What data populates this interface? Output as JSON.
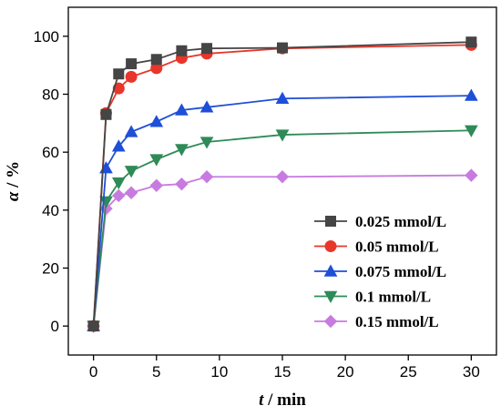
{
  "chart_data": {
    "type": "line",
    "title": "",
    "xlabel_var": "t",
    "xlabel_unit": " / min",
    "ylabel_var": "α",
    "ylabel_unit": " / %",
    "xlim": [
      -2,
      32
    ],
    "ylim": [
      -10,
      110
    ],
    "xticks": [
      0,
      5,
      10,
      15,
      20,
      25,
      30
    ],
    "yticks": [
      0,
      20,
      40,
      60,
      80,
      100
    ],
    "grid": false,
    "legend_position": "bottom-right",
    "x": [
      0,
      1,
      2,
      3,
      5,
      7,
      9,
      15,
      30
    ],
    "series": [
      {
        "name": "0.025 mmol/L",
        "color": "#454545",
        "marker": "square",
        "values": [
          0,
          73,
          87,
          90.5,
          92,
          95,
          95.8,
          96,
          98
        ]
      },
      {
        "name": "0.05 mmol/L",
        "color": "#e8362a",
        "marker": "circle",
        "values": [
          0,
          73.5,
          82,
          86,
          89,
          92.5,
          94,
          95.8,
          97
        ]
      },
      {
        "name": "0.075 mmol/L",
        "color": "#1f4fd8",
        "marker": "triangle-up",
        "values": [
          0,
          54.5,
          62,
          67,
          70.5,
          74.5,
          75.5,
          78.5,
          79.5
        ]
      },
      {
        "name": "0.1 mmol/L",
        "color": "#2e8b57",
        "marker": "triangle-down",
        "values": [
          0,
          43,
          49.5,
          53.5,
          57.5,
          61,
          63.5,
          66,
          67.5
        ]
      },
      {
        "name": "0.15 mmol/L",
        "color": "#c77be0",
        "marker": "diamond",
        "values": [
          0,
          40.5,
          45,
          46,
          48.5,
          49,
          51.5,
          51.5,
          52
        ]
      }
    ]
  }
}
